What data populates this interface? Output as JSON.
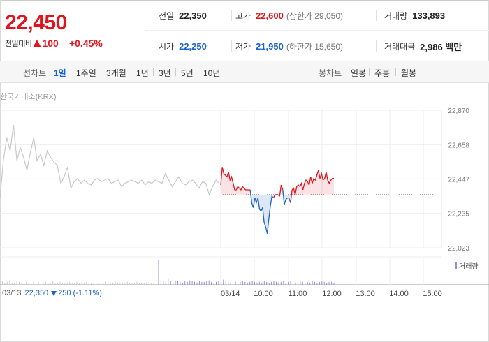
{
  "summary": {
    "current_price": "22,450",
    "change_label": "전일대비",
    "change_value": "100",
    "change_pct": "+0.45%",
    "prev_close_label": "전일",
    "prev_close": "22,350",
    "high_label": "고가",
    "high": "22,600",
    "upper_limit": "(상한가 29,050)",
    "volume_label": "거래량",
    "volume": "133,893",
    "open_label": "시가",
    "open": "22,250",
    "low_label": "저가",
    "low": "21,950",
    "lower_limit": "(하한가 15,650)",
    "amount_label": "거래대금",
    "amount": "2,986 백만"
  },
  "line_tabs": {
    "label": "선차트",
    "items": [
      "1일",
      "1주일",
      "3개월",
      "1년",
      "3년",
      "5년",
      "10년"
    ],
    "active": "1일"
  },
  "candle_tabs": {
    "label": "봉차트",
    "items": [
      "일봉",
      "주봉",
      "월봉"
    ]
  },
  "source": "한국거래소(KRX)",
  "volume_legend": "거래량",
  "bottom_info": {
    "date": "03/13",
    "price": "22,350",
    "change": "250",
    "pct": "(-1.11%)"
  },
  "colors": {
    "up": "#e1141e",
    "down": "#1a63c8",
    "prev_day_line": "#c8c8c8"
  },
  "chart_data": {
    "type": "line",
    "y_ticks": [
      "22,870",
      "22,658",
      "22,447",
      "22,235",
      "22,023"
    ],
    "ylim": [
      22023,
      22870
    ],
    "reference": 22350,
    "x_ticks": [
      "03/13",
      "03/14",
      "10:00",
      "11:00",
      "12:00",
      "13:00",
      "14:00",
      "15:00"
    ],
    "series": [
      {
        "values": [
          22330,
          22560,
          22700,
          22620,
          22780,
          22560,
          22640,
          22580,
          22500,
          22610,
          22700,
          22560,
          22600,
          22530,
          22620,
          22580,
          22550,
          22530,
          22420,
          22460,
          22520,
          22390,
          22430,
          22450,
          22420,
          22440,
          22420,
          22410,
          22440,
          22450,
          22430,
          22440,
          22450,
          22420,
          22430,
          22440,
          22400,
          22420,
          22430,
          22440,
          22430,
          22420,
          22440,
          22410,
          22430,
          22420,
          22440,
          22430,
          22420,
          22480,
          22440,
          22400,
          22430,
          22460,
          22420,
          22410,
          22430,
          22440,
          22420,
          22390,
          22430,
          22420,
          22350,
          22400,
          22440,
          22420
        ]
      },
      {
        "values": [
          22410,
          22520,
          22480,
          22470,
          22460,
          22490,
          22440,
          22460,
          22420,
          22380,
          22380,
          22400,
          22390,
          22380,
          22400,
          22390,
          22380,
          22380,
          22380,
          22380,
          22300,
          22270,
          22330,
          22300,
          22330,
          22260,
          22250,
          22270,
          22180,
          22150,
          22110,
          22200,
          22280,
          22340,
          22330,
          22350,
          22350,
          22350,
          22340,
          22410,
          22380,
          22290,
          22320,
          22330,
          22330,
          22300,
          22380,
          22390,
          22350,
          22400,
          22410,
          22400,
          22420,
          22380,
          22420,
          22440,
          22430,
          22410,
          22460,
          22420,
          22450,
          22440,
          22470,
          22500,
          22450,
          22480,
          22440,
          22450,
          22490,
          22440,
          22420,
          22440,
          22450,
          22450
        ]
      }
    ],
    "volume_series": [
      3,
      5,
      2,
      4,
      6,
      3,
      2,
      5,
      4,
      3,
      2,
      4,
      3,
      2,
      5,
      3,
      4,
      2,
      3,
      4,
      2,
      3,
      5,
      2,
      3,
      4,
      3,
      2,
      3,
      4,
      2,
      3,
      4,
      2,
      3,
      2,
      4,
      3,
      2,
      3,
      4,
      2,
      3,
      2,
      4,
      3,
      2,
      3,
      4,
      3,
      2,
      3,
      2,
      4,
      3,
      2,
      3,
      4,
      2,
      3,
      2,
      3,
      4,
      2,
      3,
      2,
      34,
      6,
      5,
      4,
      8,
      5,
      4,
      6,
      5,
      4,
      3,
      5,
      4,
      6,
      5,
      4,
      3,
      5,
      4,
      4,
      5,
      6,
      4,
      3,
      4,
      5,
      6,
      7,
      5,
      4,
      3,
      4,
      5,
      3,
      4,
      5,
      4,
      3,
      4,
      5,
      4,
      3,
      4,
      3,
      5,
      4,
      3,
      4,
      5,
      4,
      3,
      4,
      5,
      3,
      4,
      5,
      4,
      3,
      4,
      5,
      4,
      3,
      4,
      3,
      5,
      4,
      3,
      4,
      5,
      4,
      3,
      4,
      4,
      3
    ]
  }
}
